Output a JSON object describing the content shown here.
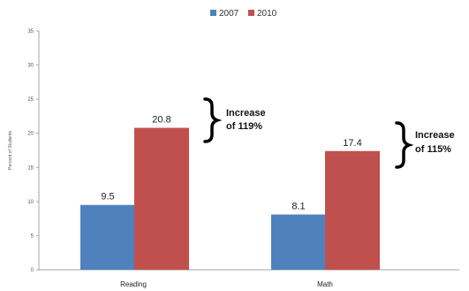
{
  "chart_data": {
    "type": "bar",
    "categories": [
      "Reading",
      "Math"
    ],
    "series": [
      {
        "name": "2007",
        "values": [
          9.5,
          8.1
        ],
        "color": "#4f81bd"
      },
      {
        "name": "2010",
        "values": [
          20.8,
          17.4
        ],
        "color": "#c0504d"
      }
    ],
    "ylabel": "Percent of Students",
    "ylim": [
      0,
      35
    ],
    "yticks": [
      0,
      5,
      10,
      15,
      20,
      25,
      30,
      35
    ],
    "ytick_labels": [
      "0",
      "5",
      "10",
      "15",
      "20",
      "25",
      "30",
      "35"
    ],
    "data_labels": [
      [
        "9.5",
        "8.1"
      ],
      [
        "20.8",
        "17.4"
      ]
    ],
    "legend_position": "top",
    "grid": false,
    "annotations": [
      {
        "category": "Reading",
        "line1": "Increase",
        "line2": "of 119%"
      },
      {
        "category": "Math",
        "line1": "Increase",
        "line2": "of 115%"
      }
    ]
  }
}
